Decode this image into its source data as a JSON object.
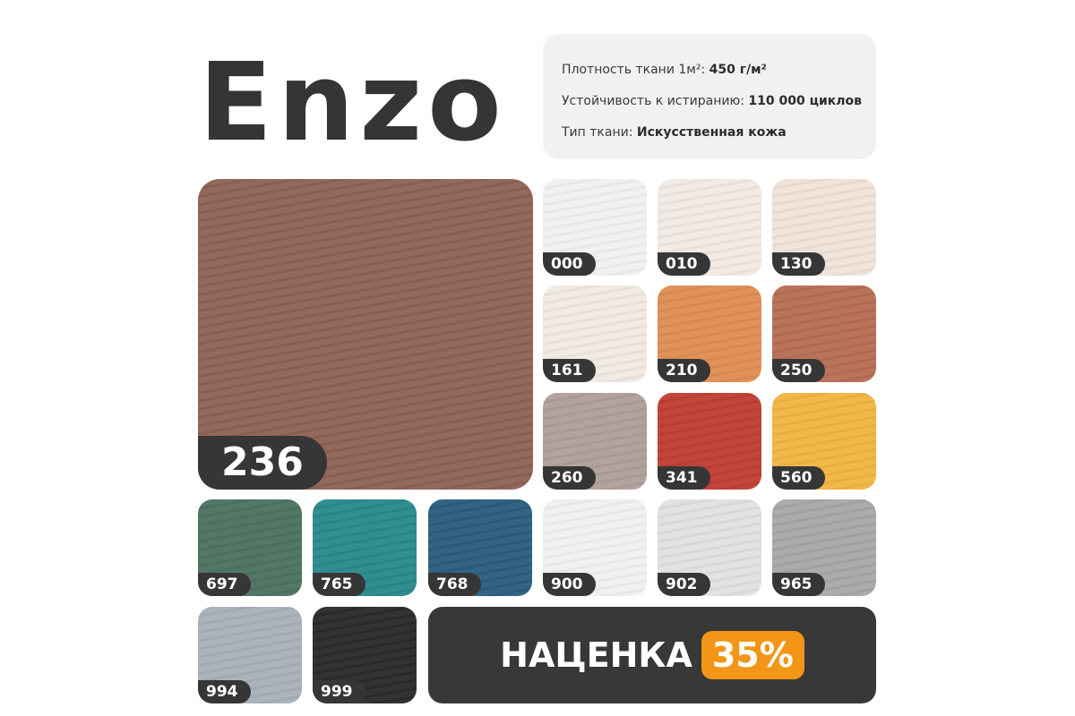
{
  "title": "Enzo",
  "specs": [
    {
      "label": "Плотность ткани 1м²: ",
      "value": "450 г/м²"
    },
    {
      "label": "Устойчивость к истиранию: ",
      "value": "110 000 циклов"
    },
    {
      "label": "Тип ткани: ",
      "value": "Искусственная кожа"
    }
  ],
  "featured": {
    "code": "236",
    "color": "#8e6455"
  },
  "swatches": [
    {
      "code": "000",
      "color": "#f2f1ef"
    },
    {
      "code": "010",
      "color": "#f1e9e4"
    },
    {
      "code": "130",
      "color": "#efe3d9"
    },
    {
      "code": "161",
      "color": "#efe9e1"
    },
    {
      "code": "210",
      "color": "#e08f55"
    },
    {
      "code": "250",
      "color": "#b86f55"
    },
    {
      "code": "260",
      "color": "#b1a09b"
    },
    {
      "code": "341",
      "color": "#bf3f35"
    },
    {
      "code": "560",
      "color": "#f2b643"
    },
    {
      "code": "697",
      "color": "#4f7463"
    },
    {
      "code": "765",
      "color": "#2b8a8d"
    },
    {
      "code": "768",
      "color": "#2c5f80"
    },
    {
      "code": "900",
      "color": "#f0f0f0"
    },
    {
      "code": "902",
      "color": "#e1e1e3"
    },
    {
      "code": "965",
      "color": "#a9a9ab"
    },
    {
      "code": "994",
      "color": "#a9b1bb"
    },
    {
      "code": "999",
      "color": "#2c2c2e"
    }
  ],
  "markup": {
    "label": "НАЦЕНКА",
    "percent": "35%",
    "accent": "#f39617"
  }
}
